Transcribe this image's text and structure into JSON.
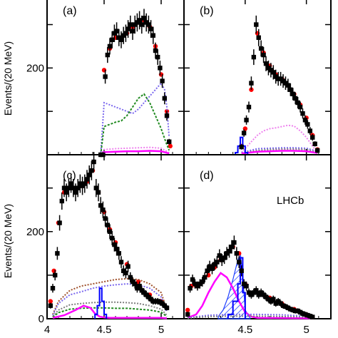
{
  "chart_data": {
    "type": "scatter",
    "ylabel": "Events/(20 MeV)",
    "x_tick_labels": [
      "4",
      "4.5",
      "5"
    ],
    "y_tick_labels": [
      "0",
      "200"
    ],
    "xlim": [
      4.0,
      5.2
    ],
    "ylim": [
      0,
      360
    ],
    "watermark": "LHCb",
    "colors": {
      "data": "#000000",
      "fit": "#ff0000",
      "total_bkg": "#0000ff",
      "comb_blue": "#7b68ee",
      "green": "#228b22",
      "magenta": "#ff00ff",
      "violet": "#ee82ee",
      "brown": "#a0522d",
      "gray": "#808080",
      "hatched": "#1f3fff"
    },
    "panels": [
      {
        "tag": "(a)",
        "series": [
          {
            "role": "data",
            "x": [
              4.47,
              4.49,
              4.51,
              4.53,
              4.55,
              4.57,
              4.59,
              4.61,
              4.63,
              4.65,
              4.67,
              4.69,
              4.71,
              4.73,
              4.75,
              4.77,
              4.79,
              4.81,
              4.83,
              4.85,
              4.87,
              4.89,
              4.91,
              4.93,
              4.95,
              4.97,
              4.99,
              5.01,
              5.03,
              5.05,
              5.07
            ],
            "y": [
              0,
              0,
              180,
              230,
              250,
              265,
              280,
              285,
              270,
              265,
              275,
              280,
              290,
              300,
              285,
              300,
              305,
              310,
              300,
              315,
              305,
              300,
              290,
              275,
              240,
              225,
              200,
              170,
              130,
              90,
              30
            ]
          },
          {
            "role": "fit",
            "x": [
              4.47,
              4.5,
              4.55,
              4.6,
              4.65,
              4.7,
              4.75,
              4.8,
              4.85,
              4.9,
              4.95,
              5.0,
              5.05,
              5.08
            ],
            "y": [
              0,
              195,
              245,
              270,
              270,
              280,
              295,
              305,
              310,
              295,
              250,
              185,
              100,
              20
            ]
          },
          {
            "role": "comb_blue",
            "x": [
              4.47,
              4.5,
              4.55,
              4.6,
              4.65,
              4.7,
              4.75,
              4.8,
              4.85,
              4.9,
              4.95,
              5.0,
              5.03,
              5.05,
              5.07
            ],
            "y": [
              0,
              120,
              115,
              110,
              105,
              100,
              95,
              105,
              120,
              135,
              150,
              165,
              150,
              110,
              40
            ]
          },
          {
            "role": "green",
            "x": [
              4.47,
              4.5,
              4.55,
              4.6,
              4.65,
              4.7,
              4.75,
              4.8,
              4.85,
              4.9,
              4.95,
              5.0,
              5.04,
              5.07
            ],
            "y": [
              0,
              65,
              70,
              75,
              78,
              90,
              110,
              130,
              140,
              120,
              90,
              60,
              30,
              10
            ]
          },
          {
            "role": "violet",
            "x": [
              4.47,
              4.5,
              4.6,
              4.7,
              4.8,
              4.9,
              5.0,
              5.07
            ],
            "y": [
              0,
              12,
              14,
              15,
              16,
              17,
              15,
              5
            ]
          },
          {
            "role": "magenta",
            "x": [
              4.47,
              4.5,
              4.6,
              4.7,
              4.8,
              4.9,
              5.0,
              5.07
            ],
            "y": [
              0,
              6,
              7,
              8,
              8,
              9,
              8,
              3
            ]
          }
        ]
      },
      {
        "tag": "(b)",
        "series": [
          {
            "role": "data",
            "x": [
              4.47,
              4.49,
              4.51,
              4.53,
              4.55,
              4.57,
              4.59,
              4.61,
              4.63,
              4.65,
              4.67,
              4.69,
              4.71,
              4.73,
              4.75,
              4.77,
              4.79,
              4.81,
              4.83,
              4.85,
              4.87,
              4.89,
              4.91,
              4.93,
              4.95,
              4.97,
              4.99,
              5.01,
              5.03,
              5.05,
              5.07,
              5.09
            ],
            "y": [
              18,
              50,
              80,
              110,
              165,
              225,
              300,
              270,
              245,
              230,
              210,
              200,
              195,
              190,
              180,
              175,
              175,
              170,
              165,
              160,
              150,
              140,
              130,
              120,
              110,
              95,
              80,
              70,
              55,
              40,
              25,
              10
            ]
          },
          {
            "role": "fit",
            "x": [
              4.47,
              4.5,
              4.55,
              4.6,
              4.65,
              4.7,
              4.75,
              4.8,
              4.85,
              4.9,
              4.95,
              5.0,
              5.05,
              5.09
            ],
            "y": [
              20,
              60,
              150,
              280,
              235,
              205,
              185,
              175,
              160,
              140,
              115,
              85,
              45,
              12
            ]
          },
          {
            "role": "violet",
            "x": [
              4.47,
              4.55,
              4.6,
              4.65,
              4.7,
              4.75,
              4.8,
              4.85,
              4.9,
              4.95,
              5.0,
              5.05,
              5.09
            ],
            "y": [
              5,
              30,
              45,
              55,
              60,
              62,
              65,
              68,
              66,
              55,
              40,
              20,
              5
            ]
          },
          {
            "role": "comb_blue",
            "x": [
              4.47,
              4.6,
              4.7,
              4.8,
              4.9,
              5.0,
              5.09
            ],
            "y": [
              5,
              14,
              15,
              16,
              16,
              15,
              8
            ]
          },
          {
            "role": "gray",
            "x": [
              4.47,
              4.6,
              4.7,
              4.8,
              4.9,
              5.0,
              5.09
            ],
            "y": [
              4,
              10,
              12,
              13,
              13,
              12,
              6
            ]
          },
          {
            "role": "magenta",
            "x": [
              4.47,
              4.6,
              4.7,
              4.8,
              4.9,
              5.0,
              5.09
            ],
            "y": [
              3,
              7,
              8,
              9,
              9,
              8,
              4
            ]
          }
        ]
      },
      {
        "tag": "(c)",
        "series": [
          {
            "role": "data",
            "x": [
              4.03,
              4.05,
              4.07,
              4.09,
              4.11,
              4.13,
              4.15,
              4.17,
              4.19,
              4.21,
              4.23,
              4.25,
              4.27,
              4.29,
              4.31,
              4.33,
              4.35,
              4.37,
              4.39,
              4.41,
              4.43,
              4.45,
              4.47,
              4.49,
              4.51,
              4.53,
              4.55,
              4.57,
              4.59,
              4.61,
              4.63,
              4.65,
              4.67,
              4.69,
              4.71,
              4.73,
              4.75,
              4.77,
              4.79,
              4.81,
              4.83,
              4.85,
              4.87,
              4.89,
              4.91,
              4.93,
              4.95,
              4.97,
              4.99,
              5.01,
              5.03,
              5.05
            ],
            "y": [
              30,
              70,
              100,
              150,
              220,
              270,
              300,
              290,
              300,
              310,
              300,
              290,
              300,
              310,
              305,
              310,
              320,
              330,
              340,
              360,
              300,
              290,
              260,
              250,
              230,
              215,
              200,
              185,
              170,
              160,
              150,
              130,
              110,
              105,
              120,
              95,
              85,
              80,
              70,
              75,
              65,
              60,
              55,
              50,
              45,
              40,
              40,
              40,
              38,
              35,
              30,
              25
            ]
          },
          {
            "role": "fit",
            "x": [
              4.03,
              4.06,
              4.1,
              4.15,
              4.2,
              4.25,
              4.3,
              4.35,
              4.4,
              4.45,
              4.5,
              4.55,
              4.6,
              4.7,
              4.8,
              4.9,
              5.0,
              5.05
            ],
            "y": [
              40,
              110,
              220,
              290,
              300,
              300,
              305,
              315,
              340,
              290,
              245,
              205,
              175,
              125,
              85,
              55,
              40,
              25
            ]
          },
          {
            "role": "brown",
            "x": [
              4.05,
              4.1,
              4.2,
              4.3,
              4.4,
              4.5,
              4.6,
              4.7,
              4.8,
              4.9,
              5.0,
              5.05
            ],
            "y": [
              10,
              40,
              65,
              75,
              80,
              85,
              90,
              92,
              90,
              80,
              60,
              20
            ]
          },
          {
            "role": "comb_blue",
            "x": [
              4.05,
              4.1,
              4.2,
              4.3,
              4.4,
              4.5,
              4.6,
              4.7,
              4.8,
              4.9,
              5.0,
              5.05
            ],
            "y": [
              8,
              35,
              55,
              62,
              70,
              75,
              78,
              80,
              78,
              70,
              50,
              15
            ]
          },
          {
            "role": "gray",
            "x": [
              4.05,
              4.1,
              4.2,
              4.3,
              4.4,
              4.5,
              4.6,
              4.7,
              4.8,
              4.9,
              5.0,
              5.05
            ],
            "y": [
              5,
              20,
              32,
              35,
              37,
              38,
              38,
              37,
              35,
              30,
              22,
              8
            ]
          },
          {
            "role": "green",
            "x": [
              4.05,
              4.1,
              4.2,
              4.3,
              4.4,
              4.5,
              4.6,
              4.7,
              4.8,
              4.9,
              5.0,
              5.05
            ],
            "y": [
              4,
              14,
              22,
              24,
              25,
              25,
              24,
              24,
              22,
              20,
              15,
              5
            ]
          },
          {
            "role": "magenta",
            "x": [
              4.05,
              4.15,
              4.25,
              4.32,
              4.38,
              4.42,
              4.46,
              4.5,
              4.55,
              4.65,
              4.8,
              5.0,
              5.05
            ],
            "y": [
              2,
              8,
              20,
              30,
              25,
              12,
              5,
              3,
              2,
              2,
              2,
              2,
              1
            ]
          }
        ]
      },
      {
        "tag": "(d)",
        "series": [
          {
            "role": "data",
            "x": [
              4.03,
              4.05,
              4.07,
              4.09,
              4.11,
              4.13,
              4.15,
              4.17,
              4.19,
              4.21,
              4.23,
              4.25,
              4.27,
              4.29,
              4.31,
              4.33,
              4.35,
              4.37,
              4.39,
              4.41,
              4.43,
              4.45,
              4.47,
              4.49,
              4.51,
              4.53,
              4.55,
              4.57,
              4.59,
              4.61,
              4.63,
              4.65,
              4.67,
              4.69,
              4.71,
              4.73,
              4.75,
              4.77,
              4.79,
              4.81,
              4.83,
              4.85,
              4.87,
              4.89,
              4.91,
              4.93,
              4.95,
              4.97,
              4.99,
              5.01,
              5.03,
              5.05
            ],
            "y": [
              10,
              70,
              90,
              80,
              75,
              80,
              85,
              95,
              110,
              120,
              115,
              125,
              130,
              145,
              135,
              140,
              150,
              155,
              165,
              175,
              150,
              130,
              110,
              80,
              75,
              60,
              55,
              60,
              65,
              55,
              60,
              55,
              50,
              45,
              40,
              45,
              35,
              40,
              35,
              30,
              28,
              25,
              22,
              20,
              18,
              18,
              15,
              12,
              10,
              8,
              6,
              4
            ]
          },
          {
            "role": "fit",
            "x": [
              4.03,
              4.06,
              4.1,
              4.15,
              4.2,
              4.25,
              4.3,
              4.35,
              4.4,
              4.45,
              4.5,
              4.6,
              4.7,
              4.8,
              4.9,
              5.0,
              5.05
            ],
            "y": [
              20,
              75,
              75,
              85,
              100,
              118,
              135,
              150,
              165,
              150,
              80,
              60,
              48,
              35,
              22,
              10,
              4
            ]
          },
          {
            "role": "magenta",
            "x": [
              4.03,
              4.1,
              4.15,
              4.2,
              4.25,
              4.3,
              4.35,
              4.4,
              4.45,
              4.5,
              4.55,
              4.6,
              5.05
            ],
            "y": [
              2,
              10,
              30,
              60,
              85,
              105,
              95,
              70,
              40,
              15,
              5,
              2,
              1
            ]
          },
          {
            "role": "comb_blue",
            "x": [
              4.03,
              4.2,
              4.4,
              4.6,
              4.8,
              5.0,
              5.05
            ],
            "y": [
              2,
              8,
              10,
              10,
              9,
              6,
              3
            ]
          },
          {
            "role": "gray",
            "x": [
              4.03,
              4.2,
              4.4,
              4.6,
              4.8,
              5.0,
              5.05
            ],
            "y": [
              1,
              5,
              6,
              6,
              5,
              4,
              2
            ]
          }
        ],
        "hatched_peak": {
          "x": [
            4.28,
            4.32,
            4.36,
            4.4,
            4.44,
            4.46,
            4.48,
            4.5,
            4.54
          ],
          "y": [
            5,
            20,
            50,
            90,
            135,
            150,
            100,
            20,
            2
          ]
        },
        "blue_hist": {
          "x": [
            4.36,
            4.4,
            4.44,
            4.46,
            4.48
          ],
          "y": [
            10,
            40,
            80,
            140,
            60
          ]
        }
      }
    ],
    "panel_c_blue_hist": {
      "x": [
        4.42,
        4.44,
        4.46,
        4.48,
        4.5
      ],
      "y": [
        10,
        30,
        70,
        40,
        10
      ]
    },
    "panel_b_blue_hist": {
      "x": [
        4.42,
        4.44,
        4.46,
        4.48,
        4.5
      ],
      "y": [
        5,
        20,
        40,
        20,
        5
      ]
    }
  }
}
